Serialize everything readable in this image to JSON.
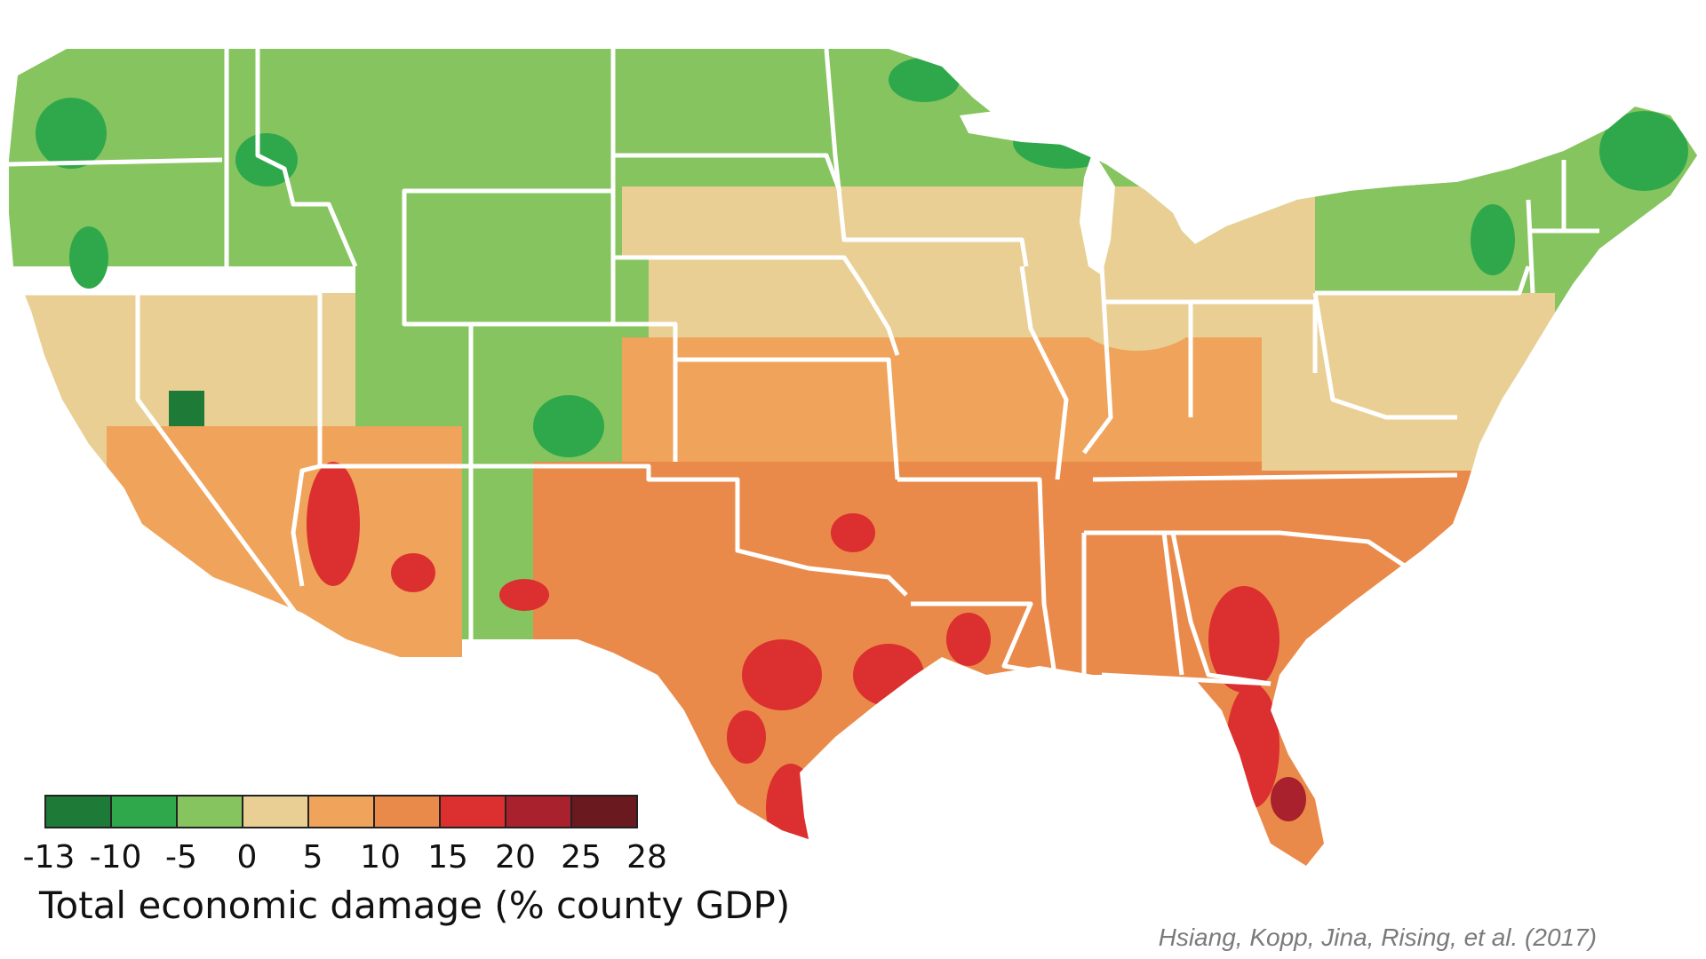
{
  "legend": {
    "title": "Total economic damage (% county GDP)",
    "ticks": [
      "-13",
      "-10",
      "-5",
      "0",
      "5",
      "10",
      "15",
      "20",
      "25",
      "28"
    ],
    "colors": [
      "#1e7a37",
      "#2fa84b",
      "#86c45f",
      "#e9cf94",
      "#f0a35a",
      "#ea8a4a",
      "#dc2f2f",
      "#a8212d",
      "#6a1a1e"
    ]
  },
  "credit": "Hsiang, Kopp, Jina, Rising, et al. (2017)"
}
